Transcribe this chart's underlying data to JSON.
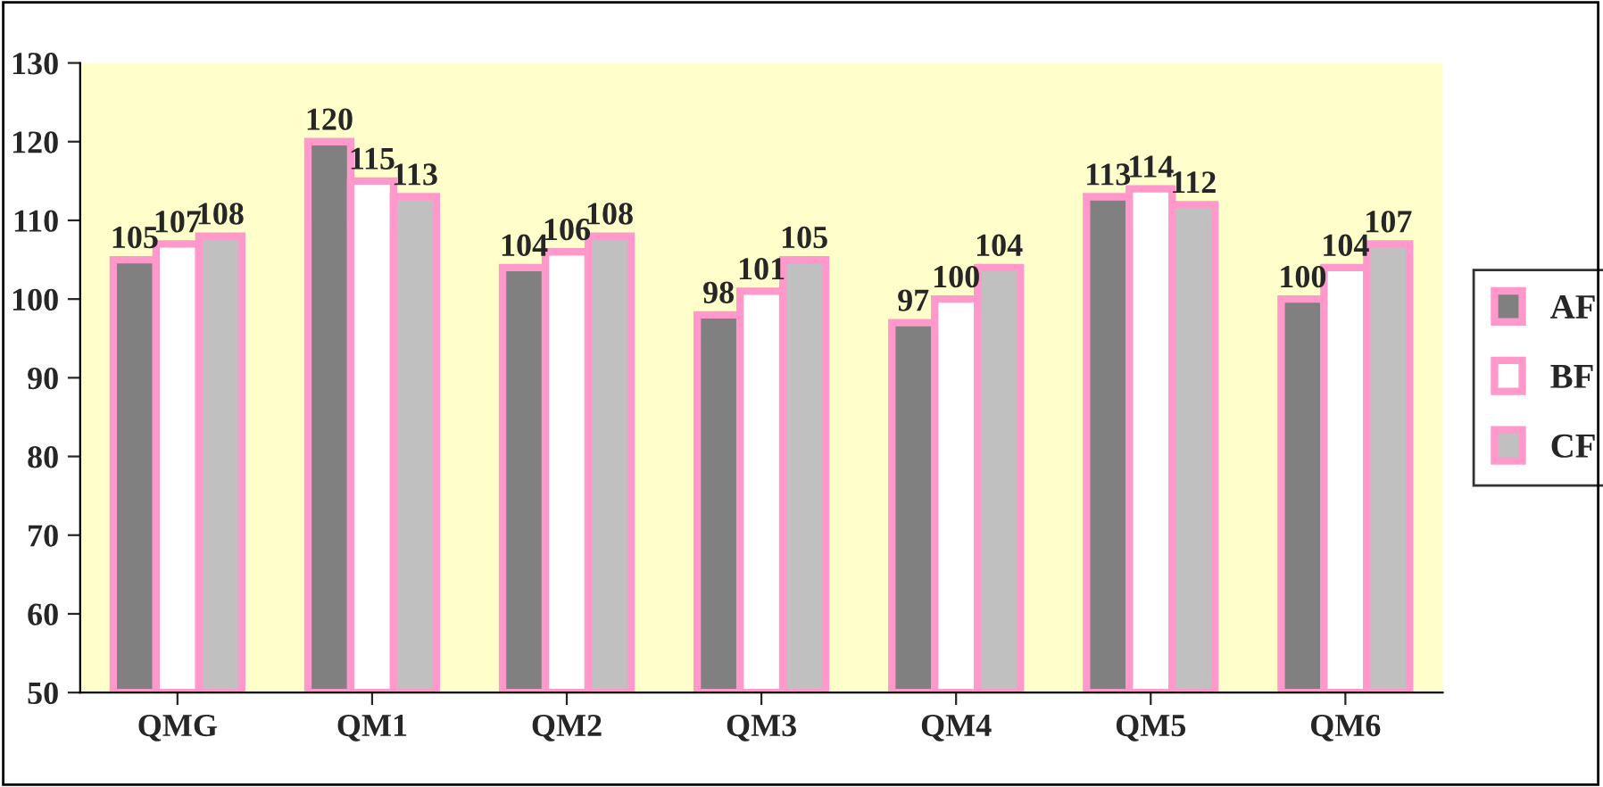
{
  "chart_data": {
    "type": "bar",
    "categories": [
      "QMG",
      "QM1",
      "QM2",
      "QM3",
      "QM4",
      "QM5",
      "QM6"
    ],
    "series": [
      {
        "name": "AF",
        "color": "#808080",
        "values": [
          105,
          120,
          104,
          98,
          97,
          113,
          100
        ]
      },
      {
        "name": "BF",
        "color": "#ffffff",
        "values": [
          107,
          115,
          106,
          101,
          100,
          114,
          104
        ]
      },
      {
        "name": "CF",
        "color": "#c0c0c0",
        "values": [
          108,
          113,
          108,
          105,
          104,
          112,
          107
        ]
      }
    ],
    "ylim": [
      50,
      130
    ],
    "yticks": [
      50,
      60,
      70,
      80,
      90,
      100,
      110,
      120,
      130
    ],
    "data_labels": true,
    "grid": false,
    "legend": "right"
  }
}
